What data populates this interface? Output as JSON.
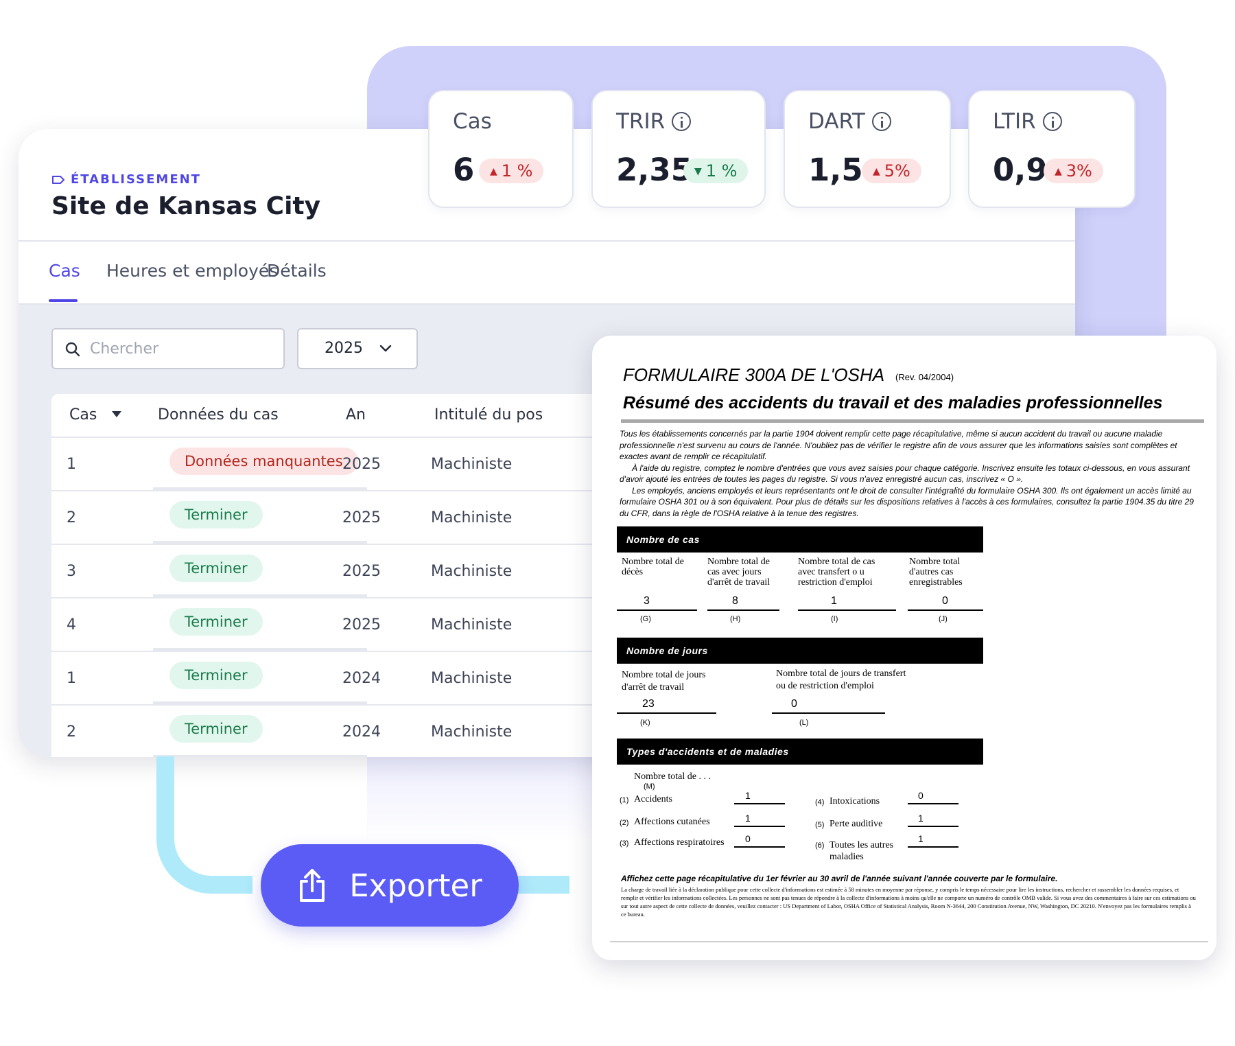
{
  "facility": {
    "overline": "ÉTABLISSEMENT",
    "name": "Site de Kansas City"
  },
  "tabs": [
    {
      "label": "Cas",
      "active": true
    },
    {
      "label": "Heures et employés",
      "active": false
    },
    {
      "label": "Détails",
      "active": false
    }
  ],
  "search": {
    "placeholder": "Chercher",
    "value": ""
  },
  "year_select": {
    "value": "2025"
  },
  "table": {
    "columns": [
      "Cas",
      "Données du cas",
      "An",
      "Intitulé du pos"
    ],
    "rows": [
      {
        "case": "1",
        "status": "Données manquantes",
        "year": "2025",
        "title": "Machiniste"
      },
      {
        "case": "2",
        "status": "Terminer",
        "year": "2025",
        "title": "Machiniste"
      },
      {
        "case": "3",
        "status": "Terminer",
        "year": "2025",
        "title": "Machiniste"
      },
      {
        "case": "4",
        "status": "Terminer",
        "year": "2025",
        "title": "Machiniste"
      },
      {
        "case": "1",
        "status": "Terminer",
        "year": "2024",
        "title": "Machiniste"
      },
      {
        "case": "2",
        "status": "Terminer",
        "year": "2024",
        "title": "Machiniste"
      }
    ]
  },
  "kpis": [
    {
      "label": "Cas",
      "value": "6",
      "delta": "1 %",
      "direction": "up"
    },
    {
      "label": "TRIR",
      "value": "2,35",
      "delta": "1 %",
      "direction": "down"
    },
    {
      "label": "DART",
      "value": "1,5",
      "delta": "5%",
      "direction": "up"
    },
    {
      "label": "LTIR",
      "value": "0,9",
      "delta": "3%",
      "direction": "up"
    }
  ],
  "export_button": {
    "label": "Exporter"
  },
  "colors": {
    "accent": "#4f46e5",
    "button": "#5b5bf6",
    "connector": "#aeeafa",
    "panel": "#cfd1fb"
  },
  "form": {
    "title": "FORMULAIRE 300A DE L'OSHA",
    "rev": "(Rev. 04/2004)",
    "subtitle": "Résumé des accidents du travail et des maladies professionnelles",
    "intro": [
      "Tous les établissements concernés par la partie 1904 doivent remplir cette page récapitulative, même si aucun accident du travail ou aucune maladie professionnelle n'est survenu au cours de l'année. N'oubliez pas de vérifier le registre afin de vous assurer que les informations saisies sont complètes et exactes avant de remplir ce récapitulatif.",
      "À l'aide du registre, comptez le nombre d'entrées que vous avez saisies pour chaque catégorie. Inscrivez ensuite les totaux ci-dessous, en vous assurant d'avoir ajouté les entrées de toutes les pages du registre. Si vous n'avez enregistré aucun cas, inscrivez « O ».",
      "Les employés, anciens employés et leurs représentants ont le droit de consulter l'intégralité du formulaire OSHA 300. Ils ont également un accès limité au formulaire OSHA 301 ou à son équivalent. Pour plus de détails sur les dispositions relatives à l'accès à ces formulaires, consultez la partie 1904.35 du titre 29 du CFR, dans la règle de l'OSHA relative à la tenue des registres."
    ],
    "cases_section": {
      "heading": "Nombre de cas",
      "fields": [
        {
          "label": "Nombre total de décès",
          "value": "3",
          "code": "(G)"
        },
        {
          "label": "Nombre total de cas avec jours d'arrêt de travail",
          "value": "8",
          "code": "(H)"
        },
        {
          "label": "Nombre total de cas avec transfert o u restriction d'emploi",
          "value": "1",
          "code": "(I)"
        },
        {
          "label": "Nombre total d'autres cas enregistrables",
          "value": "0",
          "code": "(J)"
        }
      ]
    },
    "days_section": {
      "heading": "Nombre de jours",
      "fields": [
        {
          "label": "Nombre total de jours d'arrêt de travail",
          "value": "23",
          "code": "(K)"
        },
        {
          "label": "Nombre total de jours de transfert ou de restriction d'emploi",
          "value": "0",
          "code": "(L)"
        }
      ]
    },
    "types_section": {
      "heading": "Types d'accidents et de maladies",
      "intro": "Nombre total de . . .",
      "intro_code": "(M)",
      "items": [
        {
          "num": "(1)",
          "label": "Accidents",
          "value": "1"
        },
        {
          "num": "(2)",
          "label": "Affections cutanées",
          "value": "1"
        },
        {
          "num": "(3)",
          "label": "Affections respiratoires",
          "value": "0"
        },
        {
          "num": "(4)",
          "label": "Intoxications",
          "value": "0"
        },
        {
          "num": "(5)",
          "label": "Perte auditive",
          "value": "1"
        },
        {
          "num": "(6)",
          "label": "Toutes les autres maladies",
          "value": "1"
        }
      ]
    },
    "notice": "Affichez cette page récapitulative du 1er février au 30 avril de l'année suivant l'année couverte par le formulaire.",
    "fine_print": "La charge de travail liée à la déclaration publique pour cette collecte d'informations est estimée à 58 minutes en moyenne par réponse, y compris le temps nécessaire pour lire les instructions, rechercher et rassembler les données requises, et remplir et vérifier les informations collectées. Les personnes ne sont pas tenues de répondre à la collecte d'informations à moins qu'elle ne comporte un numéro de contrôle OMB valide. Si vous avez des commentaires à faire sur ces estimations ou sur tout autre aspect de cette collecte de données, veuillez contacter : US Department of Labor, OSHA Office of Statistical Analysis, Room N-3644, 200 Constitution Avenue, NW, Washington, DC 20210. N'envoyez pas les formulaires remplis à ce bureau."
  }
}
